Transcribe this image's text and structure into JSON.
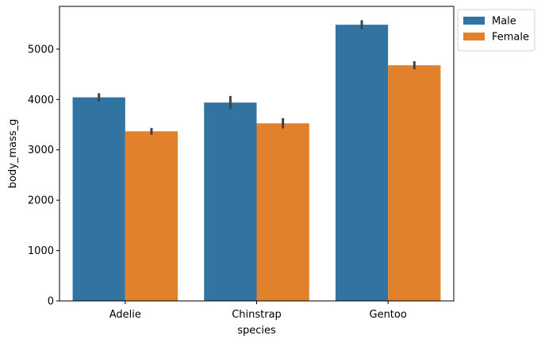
{
  "chart_data": {
    "type": "bar",
    "categories": [
      "Adelie",
      "Chinstrap",
      "Gentoo"
    ],
    "series": [
      {
        "name": "Male",
        "color": "#3274a1",
        "values": [
          4043,
          3939,
          5485
        ],
        "error_low": [
          3960,
          3810,
          5395
        ],
        "error_high": [
          4125,
          4070,
          5575
        ]
      },
      {
        "name": "Female",
        "color": "#e1812c",
        "values": [
          3369,
          3527,
          4680
        ],
        "error_low": [
          3300,
          3425,
          4600
        ],
        "error_high": [
          3435,
          3630,
          4760
        ]
      }
    ],
    "xlabel": "species",
    "ylabel": "body_mass_g",
    "ylim": [
      0,
      5850
    ],
    "yticks": [
      0,
      1000,
      2000,
      3000,
      4000,
      5000
    ],
    "grid": false,
    "legend_position": "outside upper right"
  }
}
